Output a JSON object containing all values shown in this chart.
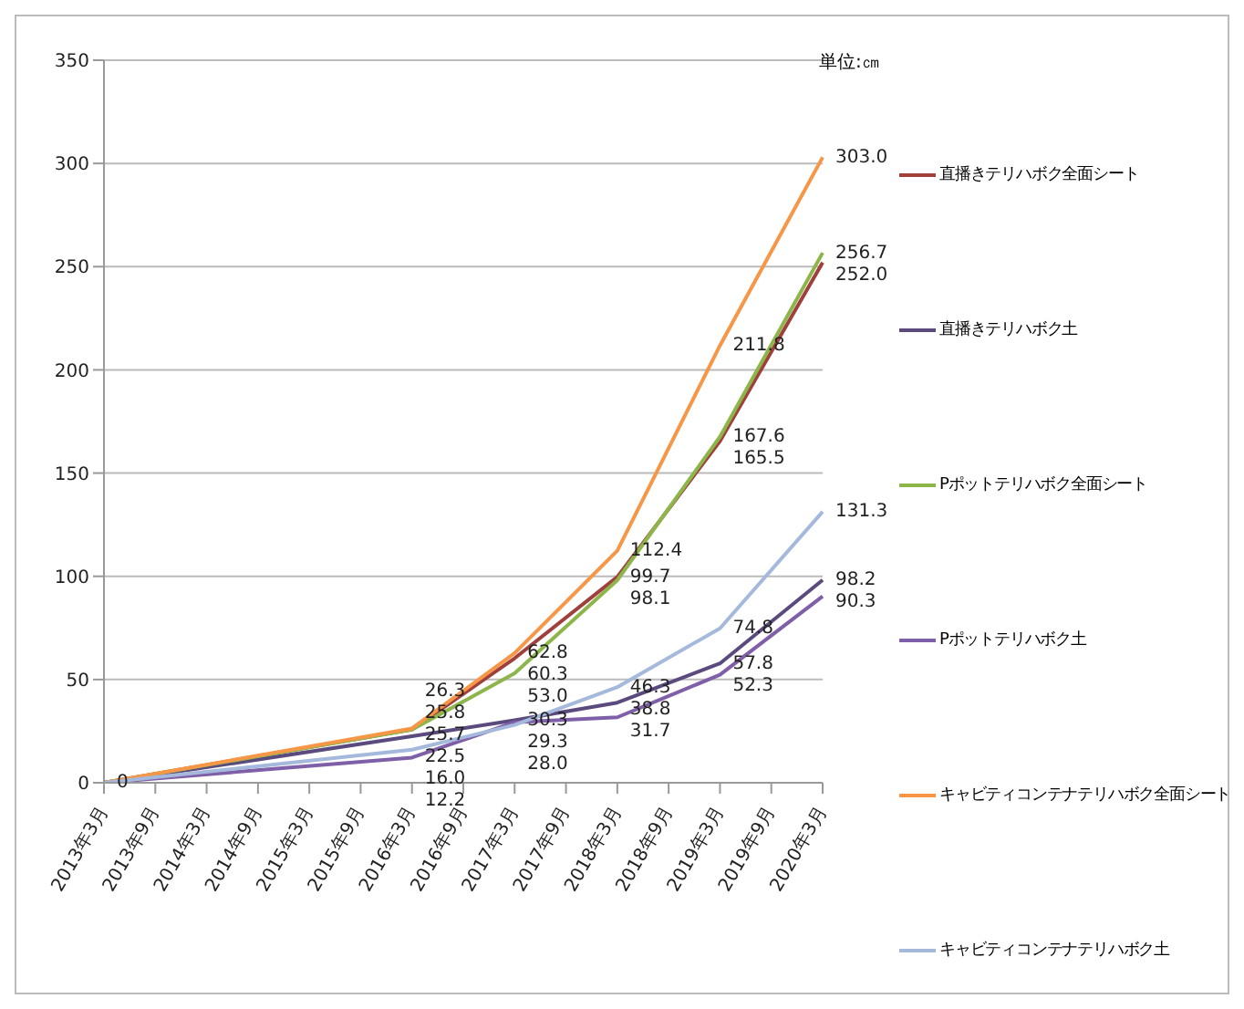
{
  "chart_data": {
    "type": "line",
    "annotations": [
      "単位:㎝"
    ],
    "categories": [
      "2013年3月",
      "2013年9月",
      "2014年3月",
      "2014年9月",
      "2015年3月",
      "2015年9月",
      "2016年3月",
      "2016年9月",
      "2017年3月",
      "2017年9月",
      "2018年3月",
      "2018年9月",
      "2019年3月",
      "2019年9月",
      "2020年3月"
    ],
    "series": [
      {
        "name": "直播きテリハボク全面シート",
        "color": "#a0403c",
        "values": [
          0,
          null,
          null,
          null,
          null,
          null,
          25.8,
          null,
          60.3,
          null,
          99.7,
          null,
          165.5,
          null,
          252.0
        ],
        "value_labels": [
          "0",
          null,
          null,
          null,
          null,
          null,
          "25.8",
          null,
          "60.3",
          null,
          "99.7",
          null,
          "165.5",
          null,
          "252.0"
        ]
      },
      {
        "name": "直播きテリハボク土",
        "color": "#5b4a7e",
        "values": [
          0,
          null,
          null,
          null,
          null,
          null,
          22.5,
          null,
          30.3,
          null,
          38.8,
          null,
          57.8,
          null,
          98.2
        ],
        "value_labels": [
          null,
          null,
          null,
          null,
          null,
          null,
          "22.5",
          null,
          "30.3",
          null,
          "38.8",
          null,
          "57.8",
          null,
          "98.2"
        ]
      },
      {
        "name": "Pポットテリハボク全面シート",
        "color": "#8db64a",
        "values": [
          0,
          null,
          null,
          null,
          null,
          null,
          25.7,
          null,
          53.0,
          null,
          98.1,
          null,
          167.6,
          null,
          256.7
        ],
        "value_labels": [
          null,
          null,
          null,
          null,
          null,
          null,
          "25.7",
          null,
          "53.0",
          null,
          "98.1",
          null,
          "167.6",
          null,
          "256.7"
        ]
      },
      {
        "name": "Pポットテリハボク土",
        "color": "#7f5fa8",
        "values": [
          0,
          null,
          null,
          null,
          null,
          null,
          12.2,
          null,
          29.3,
          null,
          31.7,
          null,
          52.3,
          null,
          90.3
        ],
        "value_labels": [
          null,
          null,
          null,
          null,
          null,
          null,
          "12.2",
          null,
          "29.3",
          null,
          "31.7",
          null,
          "52.3",
          null,
          "90.3"
        ]
      },
      {
        "name": "キャビティコンテナテリハボク全面シート",
        "color": "#f79646",
        "values": [
          0,
          null,
          null,
          null,
          null,
          null,
          26.3,
          null,
          62.8,
          null,
          112.4,
          null,
          211.8,
          null,
          303.0
        ],
        "value_labels": [
          null,
          null,
          null,
          null,
          null,
          null,
          "26.3",
          null,
          "62.8",
          null,
          "112.4",
          null,
          "211.8",
          null,
          "303.0"
        ]
      },
      {
        "name": "キャビティコンテナテリハボク土",
        "color": "#a5b9dc",
        "values": [
          0,
          null,
          null,
          null,
          null,
          null,
          16.0,
          null,
          28.0,
          null,
          46.3,
          null,
          74.8,
          null,
          131.3
        ],
        "value_labels": [
          null,
          null,
          null,
          null,
          null,
          null,
          "16.0",
          null,
          "28.0",
          null,
          "46.3",
          null,
          "74.8",
          null,
          "131.3"
        ]
      }
    ],
    "ylim": [
      0,
      350
    ],
    "yticks": [
      0,
      50,
      100,
      150,
      200,
      250,
      300,
      350
    ],
    "grid": "y",
    "legend": "right",
    "marker": "none",
    "line_style": "solid"
  }
}
